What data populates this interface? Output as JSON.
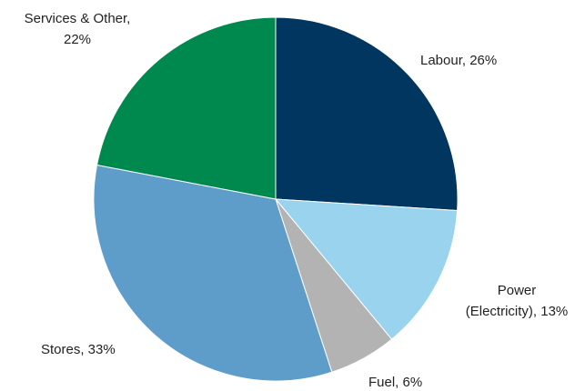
{
  "chart_data": {
    "type": "pie",
    "values": [
      26,
      13,
      6,
      33,
      22
    ],
    "value_labels": [
      [
        "Labour, 26%"
      ],
      [
        "Power",
        "(Electricity), 13%"
      ],
      [
        "Fuel, 6%"
      ],
      [
        "Stores, 33%"
      ],
      [
        "Services & Other,",
        "22%"
      ]
    ],
    "colors": [
      "#003660",
      "#99d3ee",
      "#b3b3b3",
      "#5e9cc9",
      "#00894f"
    ]
  }
}
